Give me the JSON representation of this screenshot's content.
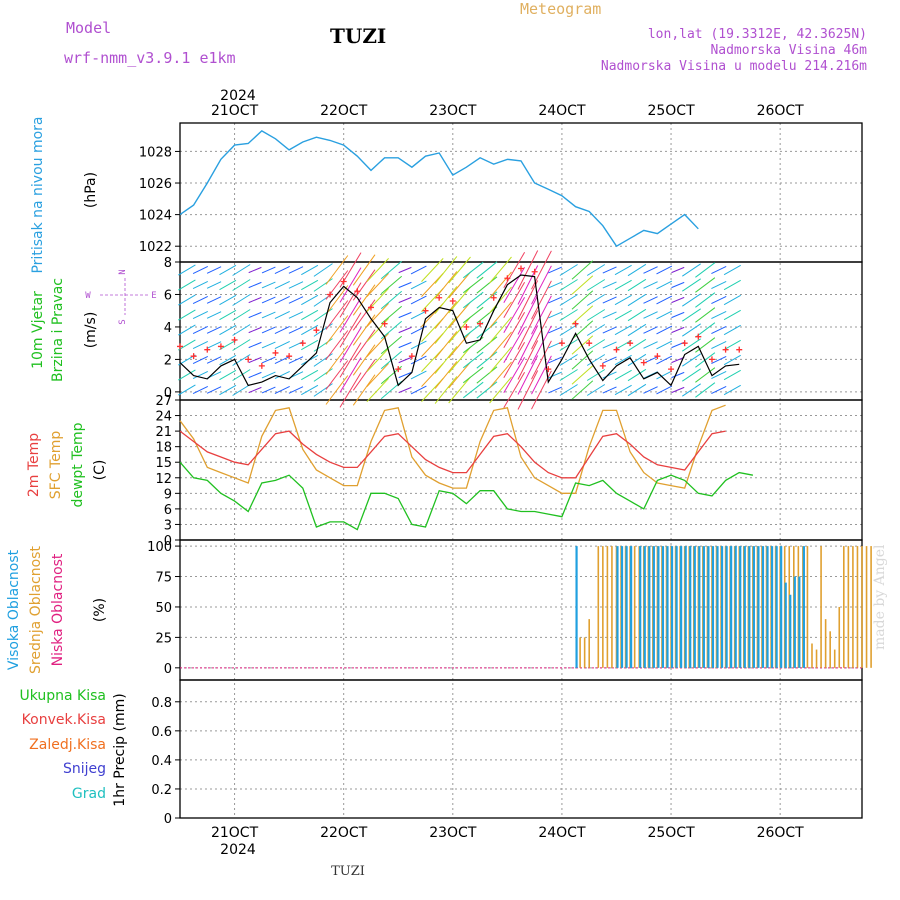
{
  "header": {
    "model_label": "Model",
    "model_name": "wrf-nmm_v3.9.1 e1km",
    "station": "TUZI",
    "app_title": "Meteogram",
    "lonlat": "lon,lat (19.3312E, 42.3625N)",
    "elevation": "Nadmorska Visina 46m",
    "model_elevation": "Nadmorska Visina u modelu 214.216m"
  },
  "time_axis": {
    "year": "2024",
    "day_labels": [
      "21OCT",
      "22OCT",
      "23OCT",
      "24OCT",
      "25OCT",
      "26OCT"
    ],
    "start": "2024-10-20 12:00",
    "end": "2024-10-26 18:00"
  },
  "watermark": "made by Angel",
  "footer_station": "TUZI",
  "colors": {
    "pressure": "#2aa0e0",
    "wind_speed": "#000000",
    "wind_gust": "#ff3030",
    "temp2m": "#e84040",
    "sfc_temp": "#e0a030",
    "dewpt": "#20c020",
    "high_cloud": "#20a0e0",
    "mid_cloud": "#e0a030",
    "low_cloud": "#e02080"
  },
  "chart_data": [
    {
      "type": "line",
      "panel": "pressure",
      "ylabel_lines": [
        "Pritisak na nivou mora"
      ],
      "unit": "(hPa)",
      "yticks": [
        1022,
        1024,
        1026,
        1028
      ],
      "ylim": [
        1021,
        1029.8
      ],
      "grid": true,
      "series": [
        {
          "values_start": "2024-10-20 12:00",
          "step_hours": 3,
          "values": [
            1024.0,
            1024.6,
            1026.0,
            1027.5,
            1028.4,
            1028.5,
            1029.3,
            1028.8,
            1028.1,
            1028.6,
            1028.9,
            1028.7,
            1028.4,
            1027.7,
            1026.8,
            1027.6,
            1027.6,
            1027.0,
            1027.7,
            1027.9,
            1026.5,
            1027.0,
            1027.6,
            1027.2,
            1027.5,
            1027.4,
            1026.0,
            1025.6,
            1025.2,
            1024.5,
            1024.2,
            1023.3,
            1022.0,
            1022.5,
            1023.0,
            1022.8,
            1023.4,
            1024.0,
            1023.1
          ]
        }
      ]
    },
    {
      "type": "line",
      "panel": "wind",
      "ylabel_lines": [
        "10m Vjetar",
        "Brzina i Pravac"
      ],
      "unit": "(m/s)",
      "compass": [
        "N",
        "W",
        "E",
        "S"
      ],
      "yticks": [
        0,
        2,
        4,
        6,
        8
      ],
      "ylim": [
        -0.5,
        8
      ],
      "grid": true,
      "series": [
        {
          "role": "speed",
          "values_start": "2024-10-20 12:00",
          "step_hours": 3,
          "values": [
            1.8,
            1.0,
            0.8,
            1.6,
            2.0,
            0.4,
            0.6,
            1.0,
            0.8,
            1.6,
            2.4,
            5.5,
            6.5,
            5.8,
            4.5,
            3.4,
            0.4,
            1.2,
            4.5,
            5.2,
            5.0,
            3.0,
            3.2,
            5.0,
            6.6,
            7.2,
            7.1,
            0.6,
            2.0,
            3.6,
            2.0,
            0.7,
            1.6,
            2.1,
            0.8,
            1.2,
            0.4,
            2.3,
            2.8,
            1.0,
            1.6,
            1.7
          ]
        },
        {
          "role": "gust",
          "values_start": "2024-10-20 12:00",
          "step_hours": 3,
          "values": [
            2.8,
            2.2,
            2.6,
            2.8,
            3.2,
            2.0,
            1.6,
            2.4,
            2.2,
            3.0,
            3.8,
            6.0,
            6.8,
            6.2,
            5.2,
            4.2,
            1.4,
            2.2,
            5.0,
            5.8,
            5.6,
            4.0,
            4.2,
            5.8,
            7.0,
            7.6,
            7.4,
            1.4,
            3.0,
            4.2,
            3.0,
            1.6,
            2.6,
            3.0,
            1.8,
            2.2,
            1.4,
            3.0,
            3.4,
            2.0,
            2.6,
            2.6
          ]
        }
      ]
    },
    {
      "type": "line",
      "panel": "temperature",
      "ylabel_lines": [
        "2m Temp",
        "SFC Temp",
        "dewpt Temp"
      ],
      "unit": "(C)",
      "yticks": [
        0,
        3,
        6,
        9,
        12,
        15,
        18,
        21,
        24,
        27
      ],
      "ylim": [
        0,
        27
      ],
      "grid": true,
      "series": [
        {
          "name": "2m Temp",
          "values_start": "2024-10-20 12:00",
          "step_hours": 3,
          "values": [
            21.0,
            19.0,
            17.0,
            16.0,
            15.0,
            14.5,
            17.5,
            20.5,
            21.0,
            18.5,
            16.5,
            15.0,
            14.0,
            14.0,
            17.0,
            20.0,
            20.5,
            18.0,
            15.5,
            14.0,
            13.0,
            13.0,
            16.5,
            20.0,
            20.5,
            18.0,
            15.0,
            13.0,
            12.0,
            12.0,
            16.0,
            20.0,
            20.5,
            18.5,
            16.0,
            14.5,
            14.0,
            13.5,
            17.0,
            20.5,
            21.0
          ]
        },
        {
          "name": "SFC Temp",
          "values_start": "2024-10-20 12:00",
          "step_hours": 3,
          "values": [
            23.0,
            19.5,
            14.0,
            13.0,
            12.0,
            11.0,
            20.0,
            25.0,
            25.5,
            17.5,
            13.5,
            12.0,
            10.5,
            10.5,
            19.0,
            25.0,
            25.5,
            16.0,
            12.5,
            11.0,
            10.0,
            10.0,
            19.0,
            25.0,
            25.5,
            16.0,
            12.0,
            10.5,
            9.0,
            9.0,
            18.0,
            25.0,
            25.0,
            17.0,
            13.0,
            11.0,
            10.5,
            10.0,
            18.0,
            25.0,
            26.0
          ]
        },
        {
          "name": "dewpt Temp",
          "values_start": "2024-10-20 12:00",
          "step_hours": 3,
          "values": [
            15.0,
            12.0,
            11.5,
            9.0,
            7.5,
            5.5,
            11.0,
            11.5,
            12.5,
            10.0,
            2.5,
            3.5,
            3.5,
            2.0,
            9.0,
            9.0,
            8.0,
            3.0,
            2.5,
            9.5,
            9.0,
            7.0,
            9.5,
            9.5,
            6.0,
            5.5,
            5.5,
            5.0,
            4.5,
            11.0,
            10.5,
            11.5,
            9.0,
            7.5,
            6.0,
            11.5,
            12.5,
            11.5,
            9.0,
            8.5,
            11.5,
            13.0,
            12.5
          ]
        }
      ]
    },
    {
      "type": "bar",
      "panel": "clouds",
      "ylabel_lines": [
        "Visoka Oblacnost",
        "Srednja Oblacnost",
        "Niska Oblacnost"
      ],
      "unit": "(%)",
      "yticks": [
        0,
        25,
        50,
        75,
        100
      ],
      "ylim": [
        -10,
        105
      ],
      "grid": true,
      "series": [
        {
          "name": "Visoka Oblacnost",
          "values_start": "2024-10-24 03:00",
          "step_hours": 1,
          "values": [
            100,
            0,
            0,
            0,
            0,
            0,
            0,
            0,
            0,
            100,
            100,
            100,
            100,
            0,
            100,
            100,
            100,
            100,
            100,
            100,
            100,
            100,
            100,
            100,
            100,
            100,
            100,
            100,
            100,
            100,
            100,
            100,
            100,
            100,
            100,
            100,
            100,
            100,
            100,
            100,
            100,
            100,
            100,
            100,
            100,
            100,
            70,
            60,
            75,
            75,
            100,
            0,
            0,
            0,
            0,
            0,
            0,
            0,
            0,
            0,
            0,
            0,
            0,
            0,
            0,
            0,
            0,
            0,
            0,
            0,
            0,
            0,
            0,
            0,
            0,
            0,
            0,
            0,
            0,
            0,
            0,
            0,
            0,
            0,
            0,
            0,
            0,
            0,
            0,
            0,
            0,
            0,
            0,
            0,
            0,
            0
          ]
        },
        {
          "name": "Srednja Oblacnost",
          "values_start": "2024-10-24 03:00",
          "step_hours": 1,
          "values": [
            0,
            25,
            25,
            40,
            0,
            100,
            100,
            100,
            100,
            100,
            100,
            100,
            100,
            100,
            100,
            100,
            100,
            100,
            100,
            100,
            100,
            100,
            100,
            100,
            100,
            100,
            100,
            100,
            100,
            100,
            100,
            100,
            100,
            100,
            100,
            100,
            100,
            100,
            100,
            100,
            100,
            100,
            100,
            100,
            100,
            100,
            100,
            100,
            100,
            100,
            100,
            100,
            20,
            15,
            100,
            40,
            30,
            15,
            50,
            100,
            100,
            100,
            100,
            100,
            100,
            100,
            0,
            0,
            0,
            0,
            0,
            0,
            0,
            0,
            0,
            0,
            0,
            0,
            0,
            0,
            0,
            0,
            0,
            0,
            0,
            0,
            0,
            0,
            0,
            0,
            0,
            0,
            0,
            0,
            0,
            0
          ]
        },
        {
          "name": "Niska Oblacnost",
          "values_start": "2024-10-24 03:00",
          "step_hours": 1,
          "values": [
            0
          ]
        }
      ]
    },
    {
      "type": "bar",
      "panel": "precipitation",
      "ylabel_lines": [
        "1hr Precip (mm)"
      ],
      "legend": [
        "Ukupna Kisa",
        "Konvek.Kisa",
        "Zaledj.Kisa",
        "Snijeg",
        "Grad"
      ],
      "yticks": [
        0,
        0.2,
        0.4,
        0.6,
        0.8
      ],
      "ylim": [
        0,
        0.95
      ],
      "grid": true,
      "series": [
        {
          "name": "Ukupna Kisa",
          "values": [
            0
          ]
        },
        {
          "name": "Konvek.Kisa",
          "values": [
            0
          ]
        },
        {
          "name": "Zaledj.Kisa",
          "values": [
            0
          ]
        },
        {
          "name": "Snijeg",
          "values": [
            0
          ]
        },
        {
          "name": "Grad",
          "values": [
            0
          ]
        }
      ]
    }
  ]
}
